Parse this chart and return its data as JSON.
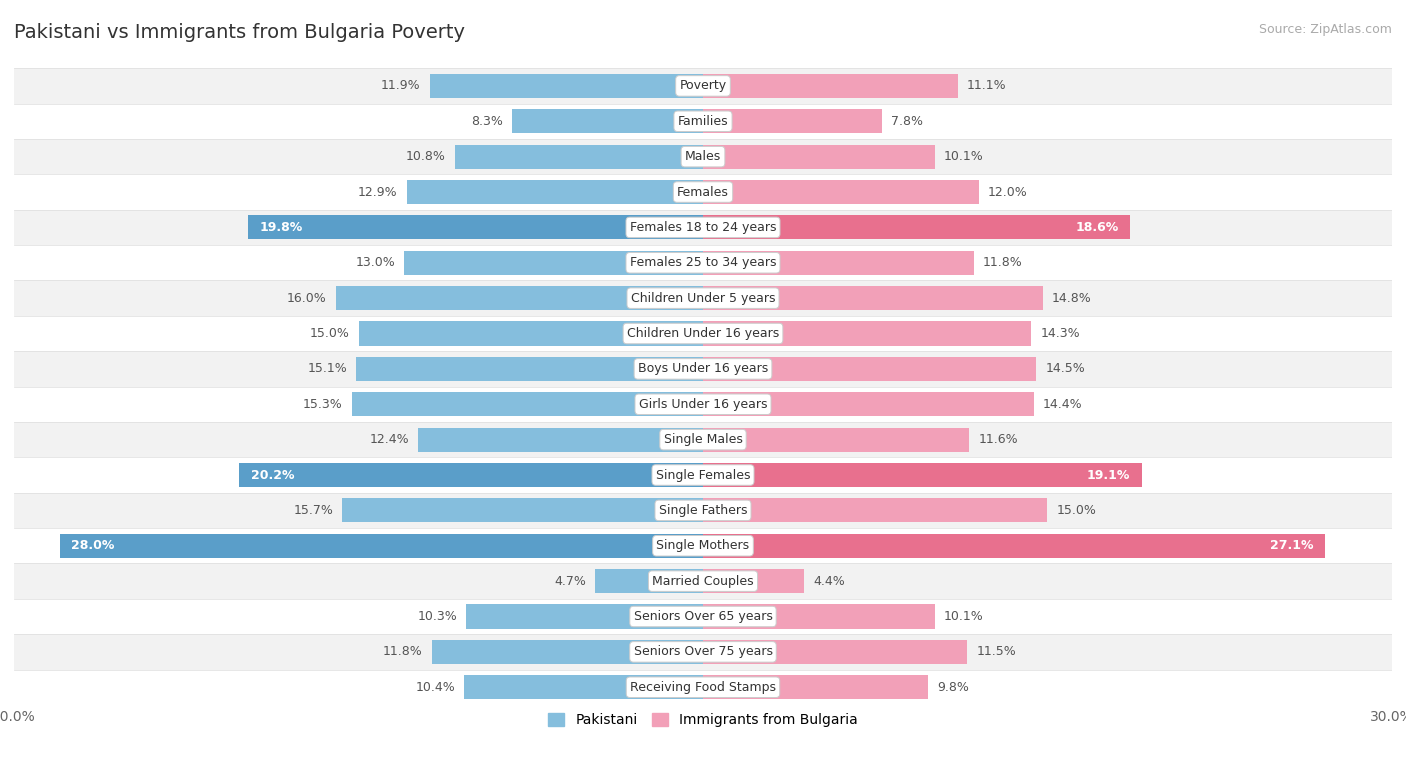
{
  "title": "Pakistani vs Immigrants from Bulgaria Poverty",
  "source": "Source: ZipAtlas.com",
  "categories": [
    "Poverty",
    "Families",
    "Males",
    "Females",
    "Females 18 to 24 years",
    "Females 25 to 34 years",
    "Children Under 5 years",
    "Children Under 16 years",
    "Boys Under 16 years",
    "Girls Under 16 years",
    "Single Males",
    "Single Females",
    "Single Fathers",
    "Single Mothers",
    "Married Couples",
    "Seniors Over 65 years",
    "Seniors Over 75 years",
    "Receiving Food Stamps"
  ],
  "pakistani": [
    11.9,
    8.3,
    10.8,
    12.9,
    19.8,
    13.0,
    16.0,
    15.0,
    15.1,
    15.3,
    12.4,
    20.2,
    15.7,
    28.0,
    4.7,
    10.3,
    11.8,
    10.4
  ],
  "bulgaria": [
    11.1,
    7.8,
    10.1,
    12.0,
    18.6,
    11.8,
    14.8,
    14.3,
    14.5,
    14.4,
    11.6,
    19.1,
    15.0,
    27.1,
    4.4,
    10.1,
    11.5,
    9.8
  ],
  "max_val": 30.0,
  "pakistani_color": "#85bedd",
  "bulgaria_color": "#f2a0b8",
  "pakistani_highlight_color": "#5a9ec9",
  "bulgaria_highlight_color": "#e8708e",
  "label_color_normal": "#555555",
  "label_color_highlight": "#ffffff",
  "highlight_threshold": 18.5,
  "bg_row_even": "#f2f2f2",
  "bg_row_odd": "#ffffff",
  "bar_height": 0.68,
  "legend_pakistani": "Pakistani",
  "legend_bulgaria": "Immigrants from Bulgaria",
  "title_fontsize": 14,
  "source_fontsize": 9,
  "label_fontsize": 9,
  "cat_fontsize": 9
}
